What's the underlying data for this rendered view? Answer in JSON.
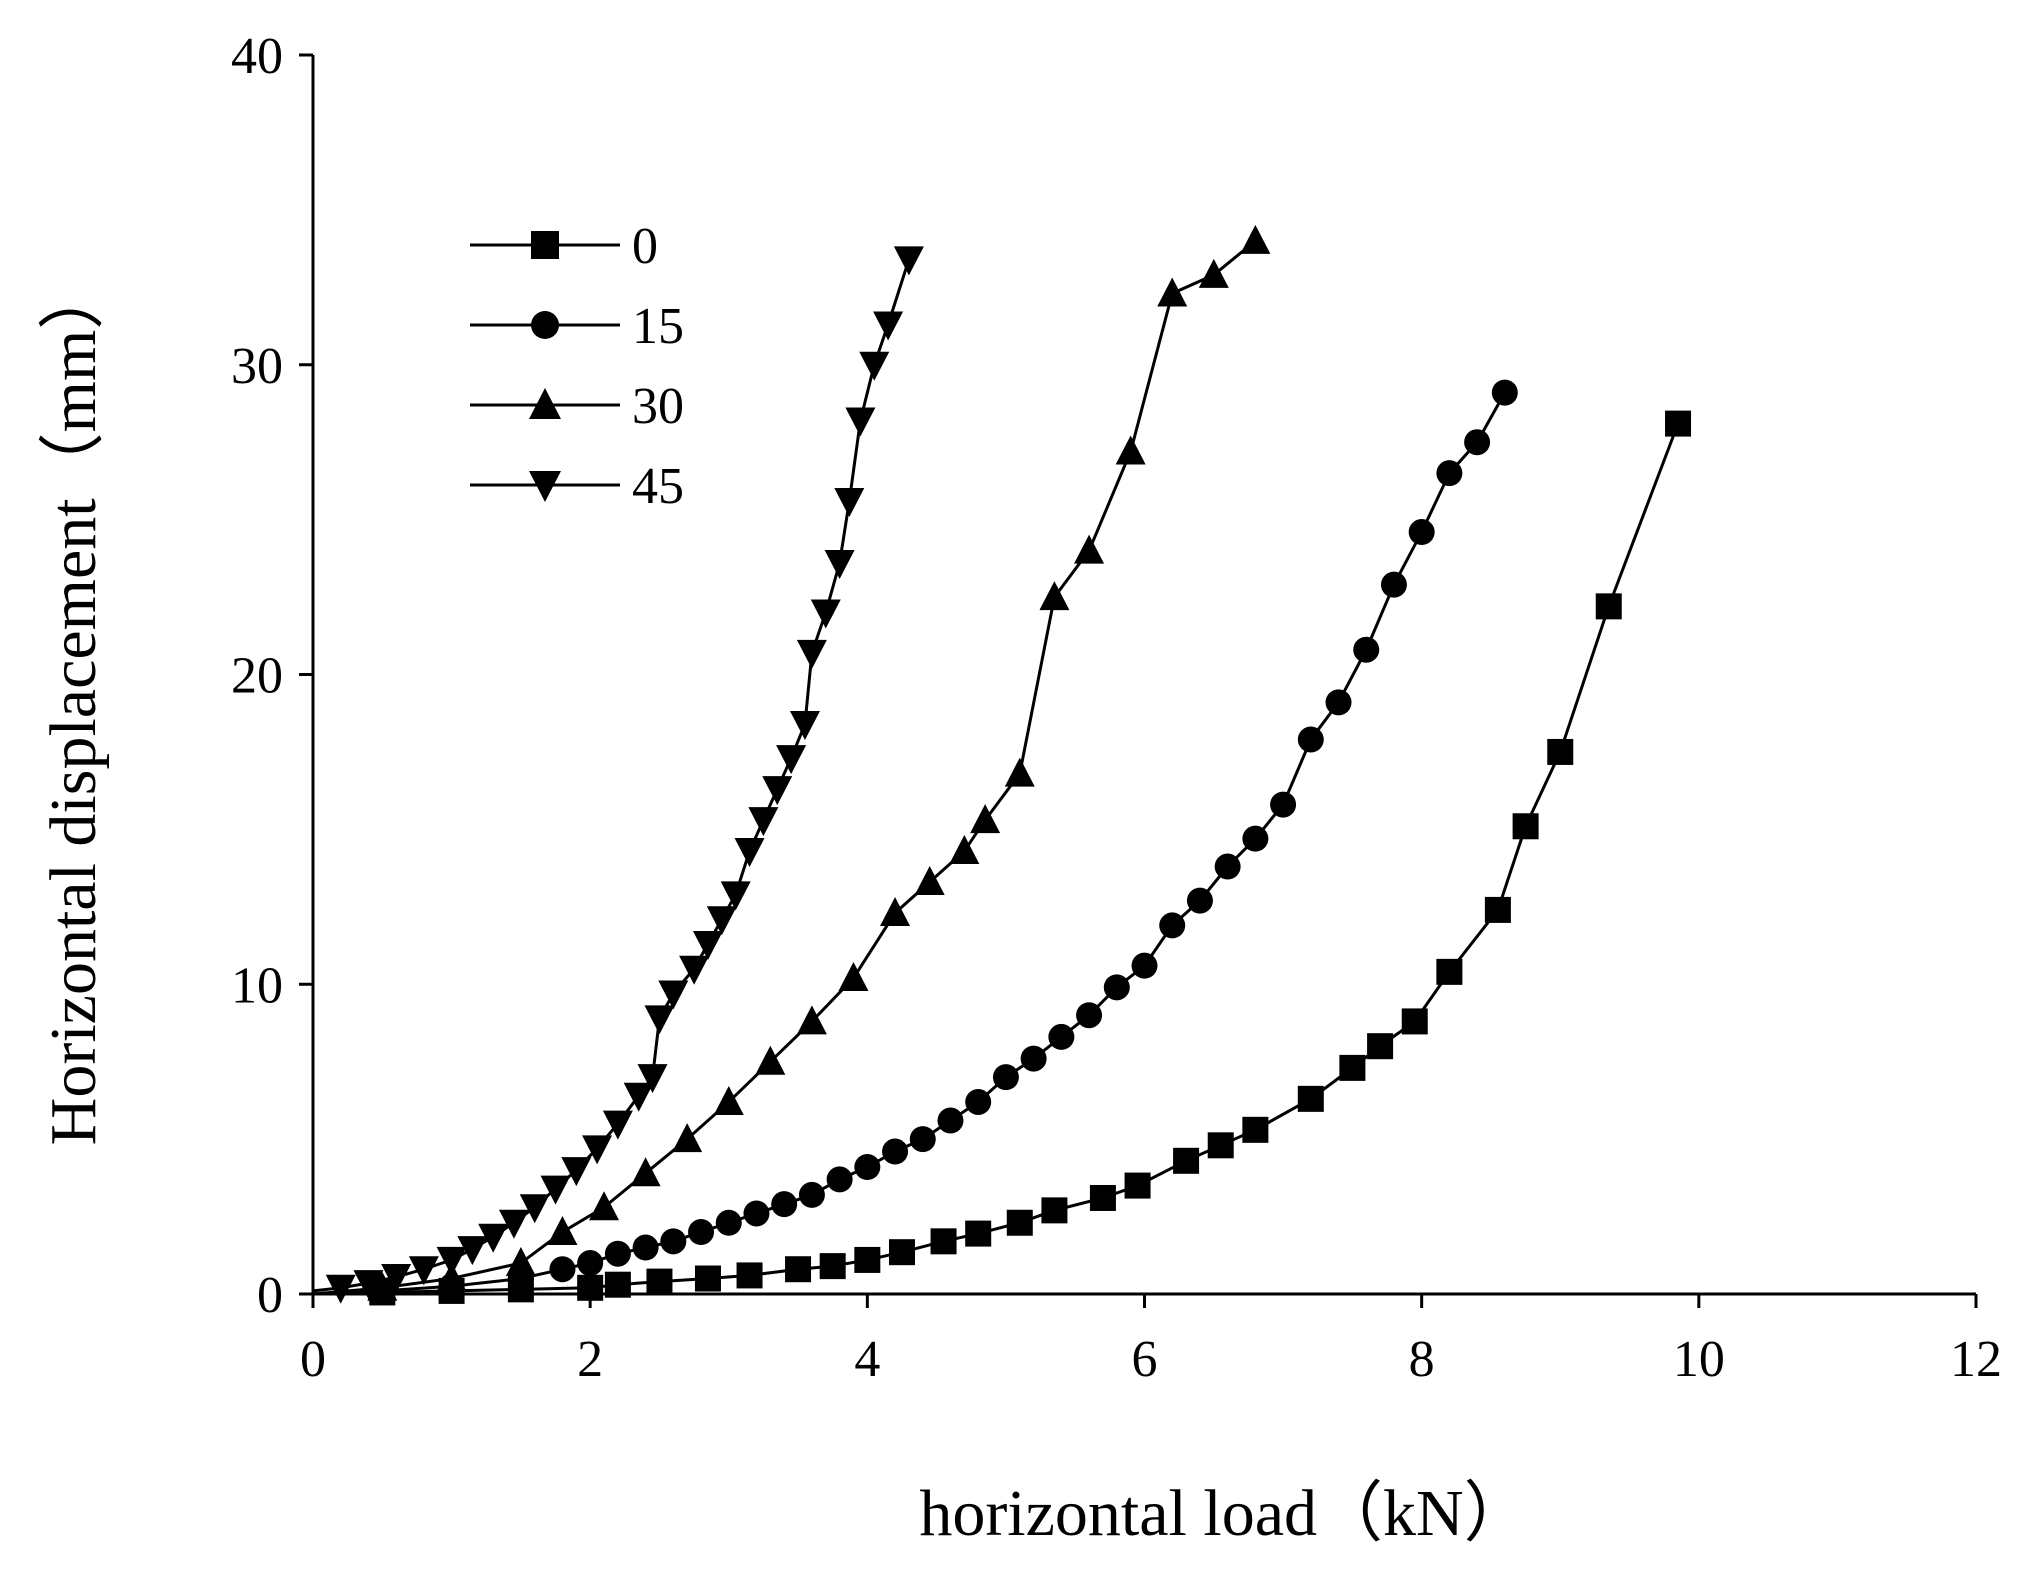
{
  "chart_data": {
    "type": "line",
    "title": "",
    "xlabel": "horizontal load（kN）",
    "ylabel": "Horizontal displacement（mm）",
    "xlim": [
      0,
      12
    ],
    "ylim": [
      0,
      40
    ],
    "x_ticks": [
      "0",
      "2",
      "4",
      "6",
      "8",
      "10",
      "12"
    ],
    "y_ticks": [
      "0",
      "10",
      "20",
      "30",
      "40"
    ],
    "grid": false,
    "legend_position": "top-left",
    "series": [
      {
        "name": "0",
        "marker": "square",
        "points": [
          [
            0,
            0
          ],
          [
            0.5,
            0.05
          ],
          [
            1,
            0.1
          ],
          [
            1.5,
            0.15
          ],
          [
            2,
            0.2
          ],
          [
            2.2,
            0.3
          ],
          [
            2.5,
            0.4
          ],
          [
            2.85,
            0.5
          ],
          [
            3.15,
            0.6
          ],
          [
            3.5,
            0.8
          ],
          [
            3.75,
            0.9
          ],
          [
            4.0,
            1.1
          ],
          [
            4.25,
            1.35
          ],
          [
            4.55,
            1.7
          ],
          [
            4.8,
            1.95
          ],
          [
            5.1,
            2.3
          ],
          [
            5.35,
            2.7
          ],
          [
            5.7,
            3.1
          ],
          [
            5.95,
            3.5
          ],
          [
            6.3,
            4.3
          ],
          [
            6.55,
            4.8
          ],
          [
            6.8,
            5.3
          ],
          [
            7.2,
            6.3
          ],
          [
            7.5,
            7.3
          ],
          [
            7.7,
            8.0
          ],
          [
            7.95,
            8.8
          ],
          [
            8.2,
            10.4
          ],
          [
            8.55,
            12.4
          ],
          [
            8.75,
            15.1
          ],
          [
            9.0,
            17.5
          ],
          [
            9.35,
            22.2
          ],
          [
            9.85,
            28.1
          ]
        ]
      },
      {
        "name": "15",
        "marker": "circle",
        "points": [
          [
            0,
            0
          ],
          [
            0.5,
            0.1
          ],
          [
            1,
            0.25
          ],
          [
            1.5,
            0.5
          ],
          [
            1.8,
            0.8
          ],
          [
            2.0,
            1.0
          ],
          [
            2.2,
            1.3
          ],
          [
            2.4,
            1.5
          ],
          [
            2.6,
            1.7
          ],
          [
            2.8,
            2.0
          ],
          [
            3.0,
            2.3
          ],
          [
            3.2,
            2.6
          ],
          [
            3.4,
            2.9
          ],
          [
            3.6,
            3.2
          ],
          [
            3.8,
            3.7
          ],
          [
            4.0,
            4.1
          ],
          [
            4.2,
            4.6
          ],
          [
            4.4,
            5.0
          ],
          [
            4.6,
            5.6
          ],
          [
            4.8,
            6.2
          ],
          [
            5.0,
            7.0
          ],
          [
            5.2,
            7.6
          ],
          [
            5.4,
            8.3
          ],
          [
            5.6,
            9.0
          ],
          [
            5.8,
            9.9
          ],
          [
            6.0,
            10.6
          ],
          [
            6.2,
            11.9
          ],
          [
            6.4,
            12.7
          ],
          [
            6.6,
            13.8
          ],
          [
            6.8,
            14.7
          ],
          [
            7.0,
            15.8
          ],
          [
            7.2,
            17.9
          ],
          [
            7.4,
            19.1
          ],
          [
            7.6,
            20.8
          ],
          [
            7.8,
            22.9
          ],
          [
            8.0,
            24.6
          ],
          [
            8.2,
            26.5
          ],
          [
            8.4,
            27.5
          ],
          [
            8.6,
            29.1
          ]
        ]
      },
      {
        "name": "30",
        "marker": "triangle-up",
        "points": [
          [
            0,
            0
          ],
          [
            0.5,
            0.2
          ],
          [
            1.0,
            0.5
          ],
          [
            1.5,
            1.0
          ],
          [
            1.8,
            2.0
          ],
          [
            2.1,
            2.8
          ],
          [
            2.4,
            3.9
          ],
          [
            2.7,
            5.0
          ],
          [
            3.0,
            6.2
          ],
          [
            3.3,
            7.5
          ],
          [
            3.6,
            8.8
          ],
          [
            3.9,
            10.2
          ],
          [
            4.2,
            12.3
          ],
          [
            4.45,
            13.3
          ],
          [
            4.7,
            14.3
          ],
          [
            4.85,
            15.3
          ],
          [
            5.1,
            16.8
          ],
          [
            5.35,
            22.5
          ],
          [
            5.6,
            24.0
          ],
          [
            5.9,
            27.2
          ],
          [
            6.2,
            32.3
          ],
          [
            6.5,
            32.9
          ],
          [
            6.8,
            34.0
          ]
        ]
      },
      {
        "name": "45",
        "marker": "triangle-down",
        "points": [
          [
            0,
            0.1
          ],
          [
            0.2,
            0.2
          ],
          [
            0.4,
            0.35
          ],
          [
            0.6,
            0.55
          ],
          [
            0.8,
            0.8
          ],
          [
            1.0,
            1.1
          ],
          [
            1.15,
            1.45
          ],
          [
            1.3,
            1.85
          ],
          [
            1.45,
            2.3
          ],
          [
            1.6,
            2.8
          ],
          [
            1.75,
            3.4
          ],
          [
            1.9,
            4.0
          ],
          [
            2.05,
            4.7
          ],
          [
            2.2,
            5.5
          ],
          [
            2.35,
            6.4
          ],
          [
            2.45,
            7.0
          ],
          [
            2.5,
            8.9
          ],
          [
            2.6,
            9.7
          ],
          [
            2.75,
            10.5
          ],
          [
            2.85,
            11.3
          ],
          [
            2.95,
            12.1
          ],
          [
            3.05,
            12.9
          ],
          [
            3.15,
            14.3
          ],
          [
            3.25,
            15.3
          ],
          [
            3.35,
            16.3
          ],
          [
            3.45,
            17.3
          ],
          [
            3.55,
            18.4
          ],
          [
            3.6,
            20.7
          ],
          [
            3.7,
            22.0
          ],
          [
            3.8,
            23.6
          ],
          [
            3.87,
            25.6
          ],
          [
            3.95,
            28.2
          ],
          [
            4.05,
            30.0
          ],
          [
            4.15,
            31.3
          ],
          [
            4.3,
            33.4
          ]
        ]
      }
    ]
  }
}
